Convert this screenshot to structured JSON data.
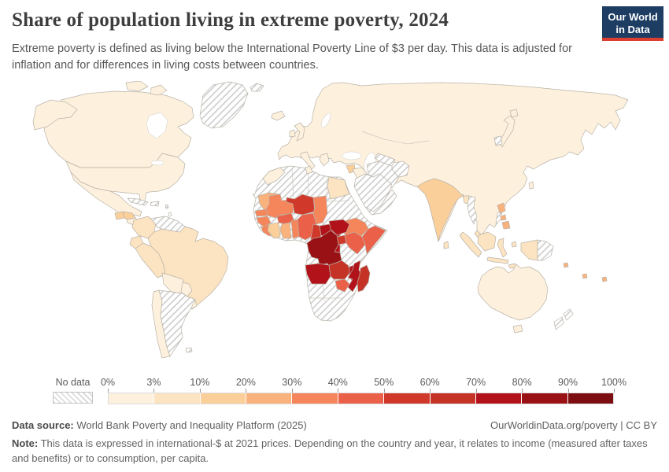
{
  "header": {
    "title": "Share of population living in extreme poverty, 2024",
    "subtitle": "Extreme poverty is defined as living below the International Poverty Line of $3 per day. This data is adjusted for inflation and for differences in living costs between countries.",
    "logo": {
      "line1": "Our World",
      "line2": "in Data",
      "bg_color": "#1d3d63",
      "accent_color": "#dc3e32"
    }
  },
  "legend": {
    "no_data_label": "No data",
    "tick_labels": [
      "0%",
      "3%",
      "10%",
      "20%",
      "30%",
      "40%",
      "50%",
      "60%",
      "70%",
      "80%",
      "90%",
      "100%"
    ],
    "bin_colors": [
      "#fdf0dd",
      "#fce3c1",
      "#fbcf9a",
      "#f9b27c",
      "#f5855a",
      "#ea6049",
      "#d0392a",
      "#c43326",
      "#b2131b",
      "#991114",
      "#7c0d11"
    ],
    "bin_ranges": [
      "0-3%",
      "3-10%",
      "10-20%",
      "20-30%",
      "30-40%",
      "40-50%",
      "50-60%",
      "60-70%",
      "70-80%",
      "80-90%",
      "90-100%"
    ]
  },
  "map": {
    "ocean_color": "#ffffff",
    "border_color": "#b9b3a8",
    "hatch_color": "#cccccc",
    "regions": {
      "canada": 0,
      "arctic-islands": 0,
      "united-states": 0,
      "mexico": 0,
      "guatemala": 2,
      "honduras": 2,
      "central-america": 0,
      "cuba": "no-data",
      "hispaniola": "no-data",
      "lesser-antilles": "no-data",
      "greenland": "no-data",
      "svalbard": "no-data",
      "colombia": 1,
      "venezuela": "no-data",
      "guyanas": "no-data",
      "ecuador": 1,
      "peru": 1,
      "brazil": 1,
      "bolivia": 0,
      "paraguay": 0,
      "uruguay": 0,
      "chile": 0,
      "argentina": "no-data",
      "falkland-islands": "no-data",
      "iceland": 0,
      "united-kingdom": 0,
      "ireland": 0,
      "eurasia": 0,
      "italy": 0,
      "greece": 0,
      "japan": 0,
      "taiwan": 0,
      "north-korea": "no-data",
      "iraq": 0,
      "syria": 2,
      "iran": "no-data",
      "afghanistan": "no-data",
      "turkmenistan": "no-data",
      "saudi-arabia": "no-data",
      "yemen-oman": "no-data",
      "india": 2,
      "sri-lanka": 1,
      "bangladesh": 1,
      "myanmar": "no-data",
      "vietnam-laos": "no-data",
      "malaysia": 1,
      "philippines": 3,
      "indonesia": 1,
      "papua-new-guinea": "no-data",
      "timor-leste": 1,
      "pacific-islands": 3,
      "australia": 0,
      "new-zealand": "no-data",
      "africa-nodata": "no-data",
      "morocco": 0,
      "tunisia": 0,
      "egypt": 1,
      "mauritania": 3,
      "senegal": 4,
      "guinea": 4,
      "sierra-leone-liberia": 4,
      "mali": 4,
      "burkina-faso": 5,
      "cote-divoire": 2,
      "ghana": 3,
      "togo-benin": 4,
      "niger": 6,
      "nigeria": 5,
      "chad": 4,
      "ethiopia": 4,
      "somalia": 5,
      "cameroon": 6,
      "central-african-republic": 8,
      "south-sudan": 8,
      "uganda": 6,
      "kenya": 5,
      "rwanda-burundi": 8,
      "democratic-republic-of-congo": 9,
      "angola": 8,
      "zambia": 7,
      "malawi": 8,
      "mozambique": 8,
      "zimbabwe": 5,
      "madagascar": 7
    }
  },
  "footer": {
    "source_label": "Data source:",
    "source_text": " World Bank Poverty and Inequality Platform (2025)",
    "credit": "OurWorldinData.org/poverty",
    "separator": " | ",
    "license": "CC BY",
    "note_label": "Note:",
    "note_text": " This data is expressed in international-$ at 2021 prices. Depending on the country and year, it relates to income (measured after taxes and benefits) or to consumption, per capita."
  },
  "chart_data": {
    "type": "choropleth_map",
    "title": "Share of population living in extreme poverty",
    "year": 2024,
    "unit": "share of population below the $3/day International Poverty Line (%)",
    "legend_bins": [
      "0-3%",
      "3-10%",
      "10-20%",
      "20-30%",
      "30-40%",
      "40-50%",
      "50-60%",
      "60-70%",
      "70-80%",
      "80-90%",
      "90-100%"
    ],
    "regions": {
      "canada": "0-3%",
      "united-states": "0-3%",
      "mexico": "0-3%",
      "guatemala": "10-20%",
      "honduras": "10-20%",
      "central-america": "0-3%",
      "colombia": "3-10%",
      "ecuador": "3-10%",
      "peru": "3-10%",
      "brazil": "3-10%",
      "bolivia": "0-3%",
      "paraguay": "0-3%",
      "uruguay": "0-3%",
      "chile": "0-3%",
      "europe-and-most-of-asia": "0-3%",
      "japan": "0-3%",
      "australia": "0-3%",
      "iraq": "0-3%",
      "syria": "10-20%",
      "egypt": "3-10%",
      "morocco": "0-3%",
      "tunisia": "0-3%",
      "india": "10-20%",
      "bangladesh": "3-10%",
      "sri-lanka": "3-10%",
      "indonesia": "3-10%",
      "malaysia": "3-10%",
      "philippines": "20-30%",
      "timor-leste": "3-10%",
      "pacific-islands": "20-30%",
      "mauritania": "20-30%",
      "senegal": "30-40%",
      "guinea": "30-40%",
      "sierra-leone-liberia": "30-40%",
      "mali": "30-40%",
      "burkina-faso": "40-50%",
      "cote-divoire": "10-20%",
      "ghana": "20-30%",
      "togo-benin": "30-40%",
      "niger": "50-60%",
      "nigeria": "40-50%",
      "chad": "30-40%",
      "ethiopia": "30-40%",
      "somalia": "40-50%",
      "cameroon": "50-60%",
      "central-african-republic": "70-80%",
      "south-sudan": "70-80%",
      "uganda": "50-60%",
      "kenya": "40-50%",
      "rwanda-burundi": "70-80%",
      "democratic-republic-of-congo": "80-90%",
      "angola": "70-80%",
      "zambia": "60-70%",
      "malawi": "70-80%",
      "mozambique": "70-80%",
      "zimbabwe": "40-50%",
      "madagascar": "60-70%"
    },
    "no_data_regions": [
      "Greenland",
      "Cuba",
      "Haiti/Dominican Rep.",
      "Venezuela",
      "Guyanas",
      "Argentina",
      "Falkland Is.",
      "Algeria",
      "Libya",
      "Western Sahara",
      "Sudan",
      "Eritrea",
      "Gabon",
      "Republic of Congo",
      "Tanzania",
      "Namibia",
      "Botswana",
      "South Africa",
      "Saudi Arabia",
      "Yemen",
      "Oman",
      "Iran",
      "Afghanistan",
      "Turkmenistan",
      "Myanmar",
      "Laos/Vietnam",
      "North Korea",
      "Papua New Guinea",
      "New Zealand"
    ]
  }
}
